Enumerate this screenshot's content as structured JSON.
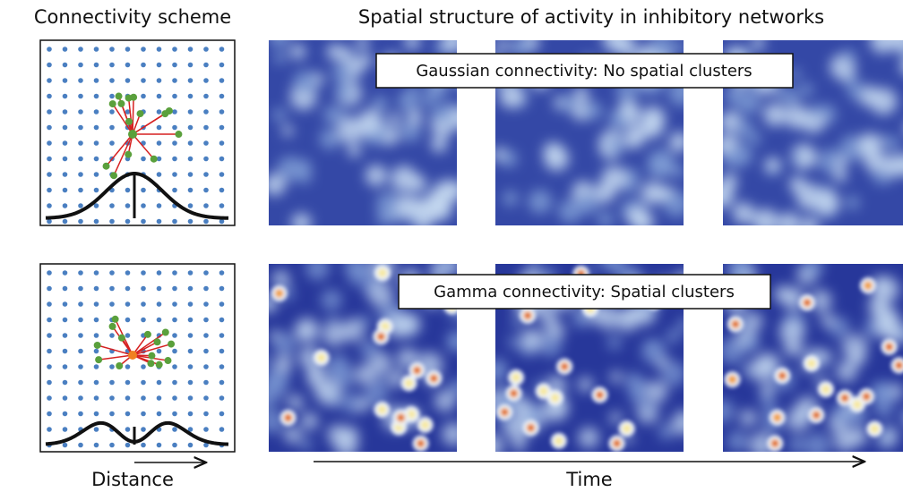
{
  "header": {
    "left_title": "Connectivity scheme",
    "right_title": "Spatial structure of activity in inhibitory networks"
  },
  "rows": [
    {
      "label": "Gaussian connectivity: No spatial clusters"
    },
    {
      "label": "Gamma connectivity: Spatial clusters"
    }
  ],
  "axes": {
    "x_left": "Distance",
    "x_right": "Time"
  }
}
